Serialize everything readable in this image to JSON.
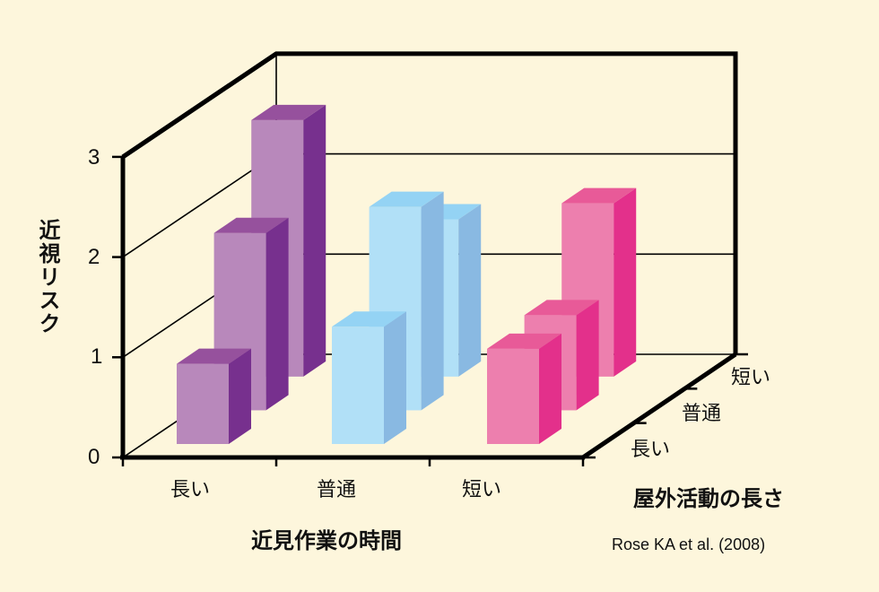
{
  "chart_data": {
    "type": "bar",
    "subtype": "3d-bar",
    "title": "",
    "ylabel": "近視リスク",
    "xlabel": "近見作業の時間",
    "zlabel": "屋外活動の長さ",
    "ylim": [
      0,
      3
    ],
    "yticks": [
      "0",
      "1",
      "2",
      "3"
    ],
    "categories": [
      "長い",
      "普通",
      "短い"
    ],
    "depth_categories": [
      "長い",
      "普通",
      "短い"
    ],
    "series": [
      {
        "name": "屋外活動 長い",
        "values": [
          0.8,
          1.17,
          0.95
        ]
      },
      {
        "name": "屋外活動 普通",
        "values": [
          1.77,
          2.03,
          0.95
        ]
      },
      {
        "name": "屋外活動 短い",
        "values": [
          2.56,
          1.57,
          1.73
        ]
      }
    ],
    "group_colors": [
      {
        "front": "#b888bb",
        "side": "#77308e",
        "top": "#96519d"
      },
      {
        "front": "#b1e0f7",
        "side": "#89b9e2",
        "top": "#94d3f4"
      },
      {
        "front": "#ed7fae",
        "side": "#e3308b",
        "top": "#e85a98"
      }
    ],
    "grid": true,
    "source": "Rose KA et al. (2008)"
  },
  "labels": {
    "ylabel": "近視リスク",
    "xlabel": "近見作業の時間",
    "zlabel": "屋外活動の長さ",
    "yticks": [
      "0",
      "1",
      "2",
      "3"
    ],
    "xcats": [
      "長い",
      "普通",
      "短い"
    ],
    "zcats": [
      "長い",
      "普通",
      "短い"
    ],
    "source": "Rose KA et al. (2008)"
  }
}
